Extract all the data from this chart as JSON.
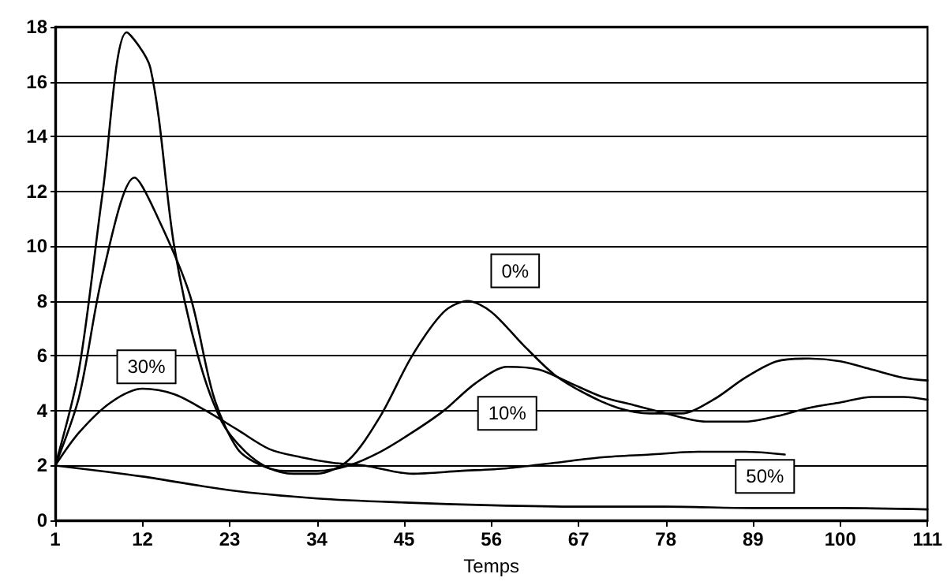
{
  "chart_data": {
    "type": "line",
    "xlabel": "Temps",
    "xlim": [
      1,
      111
    ],
    "xticks": [
      1,
      12,
      23,
      34,
      45,
      56,
      67,
      78,
      89,
      100,
      111
    ],
    "ylim": [
      0,
      18
    ],
    "yticks": [
      0,
      2,
      4,
      6,
      8,
      10,
      12,
      14,
      16,
      18
    ],
    "grid": "y",
    "marker": "none",
    "line_style": "solid",
    "series": [
      {
        "color": "#000000",
        "x": [
          1,
          4,
          7,
          10,
          13,
          16,
          19,
          22,
          25,
          28,
          31,
          34,
          38,
          42,
          46,
          50,
          53,
          56,
          60,
          64,
          68,
          72,
          76,
          80,
          84,
          88,
          92,
          96,
          100,
          104,
          108,
          111
        ],
        "values": [
          2,
          5.5,
          12,
          17.8,
          16.5,
          10,
          6,
          3.6,
          2.5,
          1.9,
          1.7,
          1.7,
          2.2,
          3.8,
          6,
          7.6,
          8,
          7.6,
          6.4,
          5.3,
          4.6,
          4.1,
          3.9,
          3.9,
          4.4,
          5.2,
          5.8,
          5.9,
          5.8,
          5.5,
          5.2,
          5.1
        ]
      },
      {
        "color": "#000000",
        "x": [
          1,
          4,
          7,
          11,
          14,
          18,
          21,
          24,
          27,
          30,
          34,
          38,
          42,
          46,
          50,
          54,
          58,
          62,
          66,
          70,
          74,
          78,
          83,
          88,
          92,
          96,
          100,
          104,
          108,
          111
        ],
        "values": [
          2,
          4.5,
          9,
          12.5,
          11,
          8.2,
          4.5,
          2.6,
          2.0,
          1.8,
          1.8,
          2.0,
          2.5,
          3.2,
          4.0,
          5.0,
          5.6,
          5.5,
          5.0,
          4.5,
          4.2,
          3.9,
          3.6,
          3.6,
          3.8,
          4.1,
          4.3,
          4.5,
          4.5,
          4.4
        ]
      },
      {
        "color": "#000000",
        "x": [
          1,
          4,
          8,
          12,
          16,
          20,
          24,
          28,
          32,
          36,
          40,
          46,
          52,
          58,
          64,
          70,
          76,
          82,
          88,
          93
        ],
        "values": [
          2,
          3.2,
          4.3,
          4.8,
          4.6,
          4.0,
          3.3,
          2.6,
          2.3,
          2.1,
          2.0,
          1.7,
          1.8,
          1.9,
          2.1,
          2.3,
          2.4,
          2.5,
          2.5,
          2.4
        ]
      },
      {
        "color": "#000000",
        "x": [
          1,
          12,
          23,
          34,
          45,
          56,
          67,
          78,
          89,
          100,
          111
        ],
        "values": [
          2,
          1.6,
          1.1,
          0.8,
          0.65,
          0.55,
          0.5,
          0.5,
          0.45,
          0.45,
          0.4
        ]
      }
    ],
    "annotations": [
      {
        "text": "0%",
        "x": 59,
        "y": 9.1
      },
      {
        "text": "10%",
        "x": 58,
        "y": 3.9
      },
      {
        "text": "30%",
        "x": 12.5,
        "y": 5.6
      },
      {
        "text": "50%",
        "x": 90.5,
        "y": 1.6
      }
    ]
  }
}
